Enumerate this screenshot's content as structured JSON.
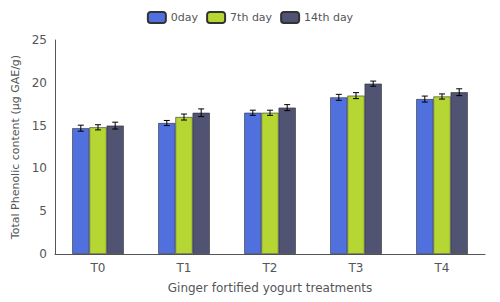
{
  "chart_data": {
    "type": "bar",
    "categories": [
      "T0",
      "T1",
      "T2",
      "T3",
      "T4"
    ],
    "series": [
      {
        "name": "0day",
        "values": [
          14.7,
          15.3,
          16.5,
          18.3,
          18.1
        ],
        "errors": [
          0.35,
          0.3,
          0.3,
          0.35,
          0.35
        ]
      },
      {
        "name": "7th day",
        "values": [
          14.8,
          16.0,
          16.5,
          18.5,
          18.4
        ],
        "errors": [
          0.3,
          0.35,
          0.3,
          0.35,
          0.3
        ]
      },
      {
        "name": "14th day",
        "values": [
          15.0,
          16.5,
          17.1,
          19.9,
          18.9
        ],
        "errors": [
          0.4,
          0.45,
          0.35,
          0.3,
          0.4
        ]
      }
    ],
    "xlabel": "Ginger fortified yogurt treatments",
    "ylabel": "Total Phenolic content (μg GAE/g)",
    "ylim": [
      0,
      25
    ],
    "yticks": [
      0,
      5,
      10,
      15,
      20,
      25
    ],
    "grid": false,
    "legend": "top"
  }
}
